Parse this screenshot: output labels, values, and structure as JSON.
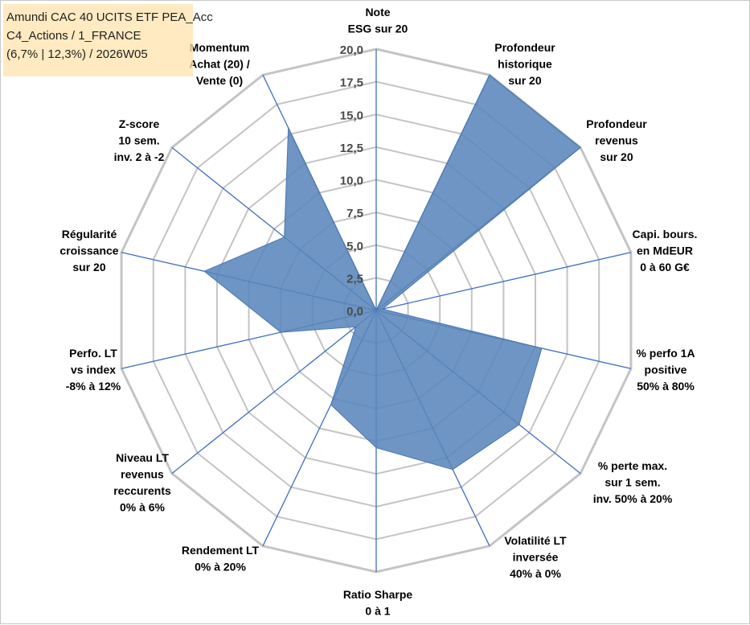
{
  "title_lines": [
    "Amundi CAC 40 UCITS ETF PEA_Acc",
    "C4_Actions / 1_FRANCE",
    "(6,7% | 12,3%) / 2026W05"
  ],
  "chart_data": {
    "type": "radar",
    "title": "Amundi CAC 40 UCITS ETF PEA_Acc C4_Actions / 1_FRANCE (6,7% | 12,3%) / 2026W05",
    "rlim": [
      0,
      20
    ],
    "tick_values": [
      0,
      2.5,
      5,
      7.5,
      10,
      12.5,
      15,
      17.5,
      20
    ],
    "tick_labels": [
      "0,0",
      "2,5",
      "5,0",
      "7,5",
      "10,0",
      "12,5",
      "15,0",
      "17,5",
      "20,0"
    ],
    "axes": [
      {
        "lines": [
          "Note",
          "ESG sur 20"
        ]
      },
      {
        "lines": [
          "Profondeur",
          "historique",
          "sur 20"
        ]
      },
      {
        "lines": [
          "Profondeur",
          "revenus",
          "sur 20"
        ]
      },
      {
        "lines": [
          "Capi. bours.",
          "en MdEUR",
          "0 à 60 G€"
        ]
      },
      {
        "lines": [
          "% perfo 1A",
          "positive",
          "50% à 80%"
        ]
      },
      {
        "lines": [
          "% perte max.",
          "sur 1 sem.",
          "inv. 50% à 20%"
        ]
      },
      {
        "lines": [
          "Volatilité LT",
          "inversée",
          "40% à 0%"
        ]
      },
      {
        "lines": [
          "Ratio Sharpe",
          "0 à 1"
        ]
      },
      {
        "lines": [
          "Rendement LT",
          "0% à 20%"
        ]
      },
      {
        "lines": [
          "Niveau LT",
          "revenus",
          "reccurents",
          "0% à 6%"
        ]
      },
      {
        "lines": [
          "Perfo. LT",
          "vs index",
          "-8% à 12%"
        ]
      },
      {
        "lines": [
          "Régularité",
          "croissance",
          "sur 20"
        ]
      },
      {
        "lines": [
          "Z-score",
          "10 sem.",
          "inv. 2 à -2"
        ]
      },
      {
        "lines": [
          "Momentum",
          "Achat (20) /",
          "Vente (0)"
        ]
      }
    ],
    "series": [
      {
        "name": "Amundi CAC 40 UCITS ETF PEA_Acc",
        "values": [
          0,
          20,
          20,
          0.5,
          13,
          14,
          13.5,
          10.5,
          8,
          2,
          7.5,
          13.5,
          9,
          15.5
        ]
      }
    ],
    "colors": {
      "fill": "#5a86bb",
      "edge": "#4a76ad",
      "axis_line": "#3f6fbf",
      "grid": "#c4c4c4"
    }
  }
}
